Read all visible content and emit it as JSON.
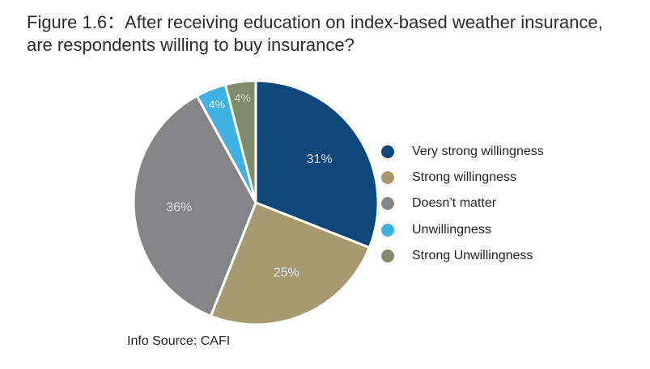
{
  "title": {
    "line1": "Figure 1.6：After receiving education on index-based weather insurance,",
    "line2": "are respondents willing to buy insurance?"
  },
  "chart_data": {
    "type": "pie",
    "slices": [
      {
        "label": "Very strong willingness",
        "value": 31,
        "display": "31%",
        "color": "#0f4778"
      },
      {
        "label": "Strong willingness",
        "value": 25,
        "display": "25%",
        "color": "#a89a70"
      },
      {
        "label": "Doesn’t matter",
        "value": 36,
        "display": "36%",
        "color": "#858487"
      },
      {
        "label": "Unwillingness",
        "value": 4,
        "display": "4%",
        "color": "#3eb1e5"
      },
      {
        "label": "Strong Unwillingness",
        "value": 4,
        "display": "4%",
        "color": "#7f8b6a"
      }
    ],
    "start_angle_deg": 0,
    "direction": "clockwise",
    "legend_position": "right"
  },
  "legend": {
    "items": [
      {
        "label": "Very strong willingness",
        "color": "#0f4778"
      },
      {
        "label": "Strong willingness",
        "color": "#a89a70"
      },
      {
        "label": "Doesn’t matter",
        "color": "#858487"
      },
      {
        "label": "Unwillingness",
        "color": "#3eb1e5"
      },
      {
        "label": "Strong Unwillingness",
        "color": "#7f8b6a"
      }
    ]
  },
  "source": "Info Source: CAFI"
}
